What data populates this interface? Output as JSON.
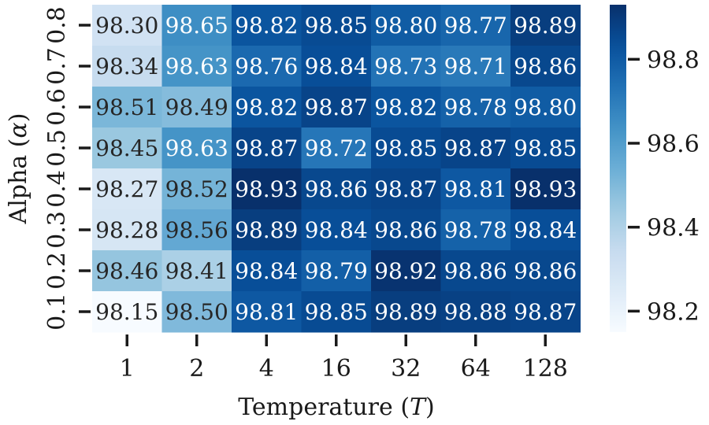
{
  "chart_data": {
    "type": "heatmap",
    "xlabel_text": "Temperature",
    "xlabel_symbol": "T",
    "ylabel_text": "Alpha",
    "ylabel_symbol": "α",
    "x_categories": [
      "1",
      "2",
      "4",
      "16",
      "32",
      "64",
      "128"
    ],
    "y_categories": [
      "0.8",
      "0.7",
      "0.6",
      "0.5",
      "0.4",
      "0.3",
      "0.2",
      "0.1"
    ],
    "values": [
      [
        98.3,
        98.65,
        98.82,
        98.85,
        98.8,
        98.77,
        98.89
      ],
      [
        98.34,
        98.63,
        98.76,
        98.84,
        98.73,
        98.71,
        98.86
      ],
      [
        98.51,
        98.49,
        98.82,
        98.87,
        98.82,
        98.78,
        98.8
      ],
      [
        98.45,
        98.63,
        98.87,
        98.72,
        98.85,
        98.87,
        98.85
      ],
      [
        98.27,
        98.52,
        98.93,
        98.86,
        98.87,
        98.81,
        98.93
      ],
      [
        98.28,
        98.56,
        98.89,
        98.84,
        98.86,
        98.78,
        98.84
      ],
      [
        98.46,
        98.41,
        98.84,
        98.79,
        98.92,
        98.86,
        98.86
      ],
      [
        98.15,
        98.5,
        98.81,
        98.85,
        98.89,
        98.88,
        98.87
      ]
    ],
    "colorbar": {
      "colormap": "Blues",
      "range": [
        98.15,
        98.93
      ],
      "ticks": [
        "98.2",
        "98.4",
        "98.6",
        "98.8"
      ]
    }
  }
}
